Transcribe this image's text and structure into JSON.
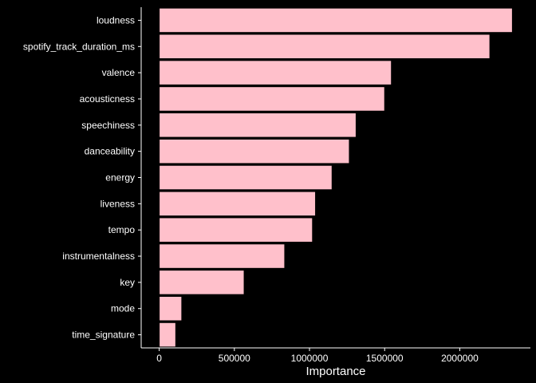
{
  "chart_data": {
    "type": "bar",
    "orientation": "horizontal",
    "title": "",
    "xlabel": "Importance",
    "ylabel": "",
    "categories": [
      "loudness",
      "spotify_track_duration_ms",
      "valence",
      "acousticness",
      "speechiness",
      "danceability",
      "energy",
      "liveness",
      "tempo",
      "instrumentalness",
      "key",
      "mode",
      "time_signature"
    ],
    "values": [
      2350000,
      2200000,
      1545000,
      1500000,
      1310000,
      1265000,
      1150000,
      1040000,
      1020000,
      835000,
      565000,
      150000,
      110000
    ],
    "xlim": [
      -120000,
      2470000
    ],
    "xticks": [
      0,
      500000,
      1000000,
      1500000,
      2000000
    ],
    "xtick_labels": [
      "0",
      "500000",
      "1000000",
      "1500000",
      "2000000"
    ],
    "grid": false,
    "colors": {
      "bar_fill": "#ffc0cb",
      "bar_stroke": "#000000",
      "background": "#000000",
      "text": "#ffffff",
      "axis": "#ffffff"
    }
  }
}
